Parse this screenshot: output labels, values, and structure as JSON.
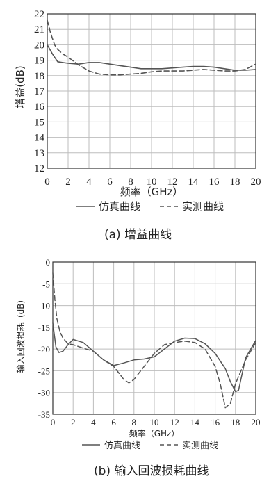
{
  "chart_data": [
    {
      "type": "line",
      "caption": "(a) 增益曲线",
      "xlabel": "频率（GHz）",
      "ylabel": "增益(dB)",
      "xlim": [
        0,
        20
      ],
      "ylim": [
        12,
        22
      ],
      "xticks": [
        0,
        2,
        4,
        6,
        8,
        10,
        12,
        14,
        16,
        18,
        20
      ],
      "yticks": [
        12,
        13,
        14,
        15,
        16,
        17,
        18,
        19,
        20,
        21,
        22
      ],
      "grid": true,
      "legend": "bottom",
      "series": [
        {
          "name": "仿真曲线",
          "style": "solid",
          "x": [
            0,
            0.5,
            1,
            1.5,
            2,
            3,
            4,
            5,
            6,
            7,
            8,
            9,
            10,
            11,
            12,
            13,
            14,
            15,
            16,
            17,
            18,
            19,
            20
          ],
          "y": [
            20.0,
            19.4,
            18.9,
            18.85,
            18.8,
            18.75,
            18.85,
            18.85,
            18.75,
            18.65,
            18.55,
            18.45,
            18.45,
            18.45,
            18.5,
            18.55,
            18.6,
            18.6,
            18.55,
            18.45,
            18.35,
            18.35,
            18.4
          ]
        },
        {
          "name": "实测曲线",
          "style": "dashed",
          "x": [
            0,
            0.3,
            0.7,
            1,
            1.5,
            2,
            3,
            4,
            5,
            6,
            7,
            8,
            9,
            10,
            11,
            12,
            13,
            14,
            15,
            16,
            17,
            18,
            19,
            20
          ],
          "y": [
            21.6,
            20.8,
            20.0,
            19.7,
            19.4,
            19.2,
            18.7,
            18.3,
            18.1,
            18.05,
            18.05,
            18.1,
            18.15,
            18.25,
            18.3,
            18.3,
            18.3,
            18.35,
            18.4,
            18.35,
            18.3,
            18.3,
            18.4,
            18.75
          ]
        }
      ]
    },
    {
      "type": "line",
      "caption": "(b) 输入回波损耗曲线",
      "xlabel": "频率（GHz）",
      "ylabel": "输入回波损耗（dB）",
      "xlim": [
        0,
        20
      ],
      "ylim": [
        -35,
        0
      ],
      "xticks": [
        0,
        2,
        4,
        6,
        8,
        10,
        12,
        14,
        16,
        18,
        20
      ],
      "yticks": [
        0,
        -5,
        -10,
        -15,
        -20,
        -25,
        -30,
        -35
      ],
      "grid": true,
      "legend": "bottom",
      "series": [
        {
          "name": "仿真曲线",
          "style": "solid",
          "x": [
            0,
            0.3,
            0.6,
            1,
            1.5,
            2,
            3,
            4,
            5,
            6,
            7,
            8,
            9,
            10,
            11,
            12,
            13,
            14,
            15,
            16,
            17,
            17.5,
            18,
            18.3,
            19,
            20
          ],
          "y": [
            -14,
            -19.5,
            -20.8,
            -20.5,
            -19.0,
            -17.8,
            -18.5,
            -20.5,
            -22.5,
            -23.8,
            -23.2,
            -22.5,
            -22.3,
            -21.8,
            -20.0,
            -18.2,
            -17.5,
            -17.6,
            -18.8,
            -21.0,
            -24.5,
            -27.5,
            -29.8,
            -29.5,
            -22.0,
            -18.0
          ]
        },
        {
          "name": "实测曲线",
          "style": "dashed",
          "x": [
            0,
            0.2,
            0.4,
            0.7,
            1,
            1.5,
            2,
            3,
            4,
            5,
            6,
            7,
            7.5,
            8,
            9,
            10,
            11,
            12,
            13,
            14,
            15,
            16,
            16.5,
            17,
            17.5,
            18,
            19,
            20
          ],
          "y": [
            -2.5,
            -8.5,
            -13.0,
            -16.0,
            -17.5,
            -18.8,
            -19.0,
            -19.8,
            -20.5,
            -22.5,
            -24.0,
            -27.0,
            -27.8,
            -27.0,
            -24.0,
            -21.0,
            -19.0,
            -18.5,
            -18.2,
            -18.5,
            -20.0,
            -24.0,
            -28.0,
            -33.5,
            -32.5,
            -28.0,
            -22.5,
            -18.5
          ]
        }
      ]
    }
  ]
}
